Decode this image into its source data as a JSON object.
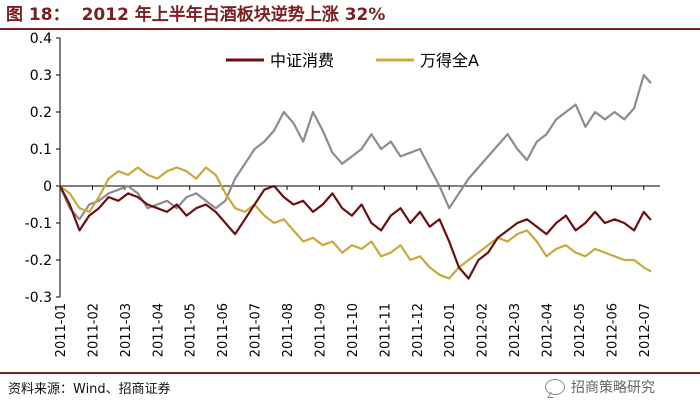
{
  "header": {
    "figure_number": "图 18：",
    "title": "2012 年上半年白酒板块逆势上涨 32%"
  },
  "footer": {
    "source": "资料来源：Wind、招商证券",
    "watermark": "招商策略研究",
    "watermark_icon": "wechat-icon"
  },
  "colors": {
    "accent": "#7a1f1f",
    "series_consumer": "#6b0f12",
    "series_wind": "#c9a93c",
    "series_baijiu": "#8c8c8c"
  },
  "chart_data": {
    "type": "line",
    "title": "2012 年上半年白酒板块逆势上涨 32%",
    "xlabel": "",
    "ylabel": "",
    "ylim": [
      -0.3,
      0.4
    ],
    "yticks": [
      -0.3,
      -0.2,
      -0.1,
      0,
      0.1,
      0.2,
      0.3,
      0.4
    ],
    "ytick_labels": [
      "-0.3",
      "-0.2",
      "-0.1",
      "0",
      "0.1",
      "0.2",
      "0.3",
      "0.4"
    ],
    "xlim": [
      0,
      18.5
    ],
    "xticks": [
      0,
      1,
      2,
      3,
      4,
      5,
      6,
      7,
      8,
      9,
      10,
      11,
      12,
      13,
      14,
      15,
      16,
      17,
      18
    ],
    "xtick_labels": [
      "2011-01",
      "2011-02",
      "2011-03",
      "2011-04",
      "2011-05",
      "2011-06",
      "2011-07",
      "2011-08",
      "2011-09",
      "2011-10",
      "2011-11",
      "2011-12",
      "2012-01",
      "2012-02",
      "2012-03",
      "2012-04",
      "2012-05",
      "2012-06",
      "2012-07"
    ],
    "grid": false,
    "legend": "top-center",
    "series": [
      {
        "name": "中证消费",
        "color": "#6b0f12",
        "x": [
          0,
          0.3,
          0.6,
          0.9,
          1.2,
          1.5,
          1.8,
          2.1,
          2.4,
          2.7,
          3.0,
          3.3,
          3.6,
          3.9,
          4.2,
          4.5,
          4.8,
          5.1,
          5.4,
          5.7,
          6.0,
          6.3,
          6.6,
          6.9,
          7.2,
          7.5,
          7.8,
          8.1,
          8.4,
          8.7,
          9.0,
          9.3,
          9.6,
          9.9,
          10.2,
          10.5,
          10.8,
          11.1,
          11.4,
          11.7,
          12.0,
          12.3,
          12.6,
          12.9,
          13.2,
          13.5,
          13.8,
          14.1,
          14.4,
          14.7,
          15.0,
          15.3,
          15.6,
          15.9,
          16.2,
          16.5,
          16.8,
          17.1,
          17.4,
          17.7,
          18.0,
          18.2
        ],
        "values": [
          0.0,
          -0.05,
          -0.12,
          -0.08,
          -0.06,
          -0.03,
          -0.04,
          -0.02,
          -0.03,
          -0.05,
          -0.06,
          -0.07,
          -0.05,
          -0.08,
          -0.06,
          -0.05,
          -0.07,
          -0.1,
          -0.13,
          -0.09,
          -0.05,
          -0.01,
          0.0,
          -0.03,
          -0.05,
          -0.04,
          -0.07,
          -0.05,
          -0.02,
          -0.06,
          -0.08,
          -0.05,
          -0.1,
          -0.12,
          -0.08,
          -0.06,
          -0.1,
          -0.07,
          -0.11,
          -0.09,
          -0.15,
          -0.22,
          -0.25,
          -0.2,
          -0.18,
          -0.14,
          -0.12,
          -0.1,
          -0.09,
          -0.11,
          -0.13,
          -0.1,
          -0.08,
          -0.12,
          -0.1,
          -0.07,
          -0.1,
          -0.09,
          -0.1,
          -0.12,
          -0.07,
          -0.09
        ]
      },
      {
        "name": "万得全A",
        "color": "#c9a93c",
        "x": [
          0,
          0.3,
          0.6,
          0.9,
          1.2,
          1.5,
          1.8,
          2.1,
          2.4,
          2.7,
          3.0,
          3.3,
          3.6,
          3.9,
          4.2,
          4.5,
          4.8,
          5.1,
          5.4,
          5.7,
          6.0,
          6.3,
          6.6,
          6.9,
          7.2,
          7.5,
          7.8,
          8.1,
          8.4,
          8.7,
          9.0,
          9.3,
          9.6,
          9.9,
          10.2,
          10.5,
          10.8,
          11.1,
          11.4,
          11.7,
          12.0,
          12.3,
          12.6,
          12.9,
          13.2,
          13.5,
          13.8,
          14.1,
          14.4,
          14.7,
          15.0,
          15.3,
          15.6,
          15.9,
          16.2,
          16.5,
          16.8,
          17.1,
          17.4,
          17.7,
          18.0,
          18.2
        ],
        "values": [
          0.0,
          -0.02,
          -0.06,
          -0.07,
          -0.03,
          0.02,
          0.04,
          0.03,
          0.05,
          0.03,
          0.02,
          0.04,
          0.05,
          0.04,
          0.02,
          0.05,
          0.03,
          -0.02,
          -0.06,
          -0.07,
          -0.05,
          -0.08,
          -0.1,
          -0.09,
          -0.12,
          -0.15,
          -0.14,
          -0.16,
          -0.15,
          -0.18,
          -0.16,
          -0.17,
          -0.15,
          -0.19,
          -0.18,
          -0.16,
          -0.2,
          -0.19,
          -0.22,
          -0.24,
          -0.25,
          -0.22,
          -0.2,
          -0.18,
          -0.16,
          -0.14,
          -0.15,
          -0.13,
          -0.12,
          -0.15,
          -0.19,
          -0.17,
          -0.16,
          -0.18,
          -0.19,
          -0.17,
          -0.18,
          -0.19,
          -0.2,
          -0.2,
          -0.22,
          -0.23
        ]
      },
      {
        "name": "",
        "color": "#8c8c8c",
        "x": [
          0,
          0.3,
          0.6,
          0.9,
          1.2,
          1.5,
          1.8,
          2.1,
          2.4,
          2.7,
          3.0,
          3.3,
          3.6,
          3.9,
          4.2,
          4.5,
          4.8,
          5.1,
          5.4,
          5.7,
          6.0,
          6.3,
          6.6,
          6.9,
          7.2,
          7.5,
          7.8,
          8.1,
          8.4,
          8.7,
          9.0,
          9.3,
          9.6,
          9.9,
          10.2,
          10.5,
          10.8,
          11.1,
          11.4,
          11.7,
          12.0,
          12.3,
          12.6,
          12.9,
          13.2,
          13.5,
          13.8,
          14.1,
          14.4,
          14.7,
          15.0,
          15.3,
          15.6,
          15.9,
          16.2,
          16.5,
          16.8,
          17.1,
          17.4,
          17.7,
          18.0,
          18.2
        ],
        "values": [
          0.0,
          -0.06,
          -0.09,
          -0.05,
          -0.04,
          -0.02,
          -0.01,
          0.0,
          -0.02,
          -0.06,
          -0.05,
          -0.04,
          -0.06,
          -0.03,
          -0.02,
          -0.04,
          -0.06,
          -0.04,
          0.02,
          0.06,
          0.1,
          0.12,
          0.15,
          0.2,
          0.17,
          0.12,
          0.2,
          0.15,
          0.09,
          0.06,
          0.08,
          0.1,
          0.14,
          0.1,
          0.12,
          0.08,
          0.09,
          0.1,
          0.05,
          0.0,
          -0.06,
          -0.02,
          0.02,
          0.05,
          0.08,
          0.11,
          0.14,
          0.1,
          0.07,
          0.12,
          0.14,
          0.18,
          0.2,
          0.22,
          0.16,
          0.2,
          0.18,
          0.2,
          0.18,
          0.21,
          0.3,
          0.28
        ]
      }
    ]
  }
}
